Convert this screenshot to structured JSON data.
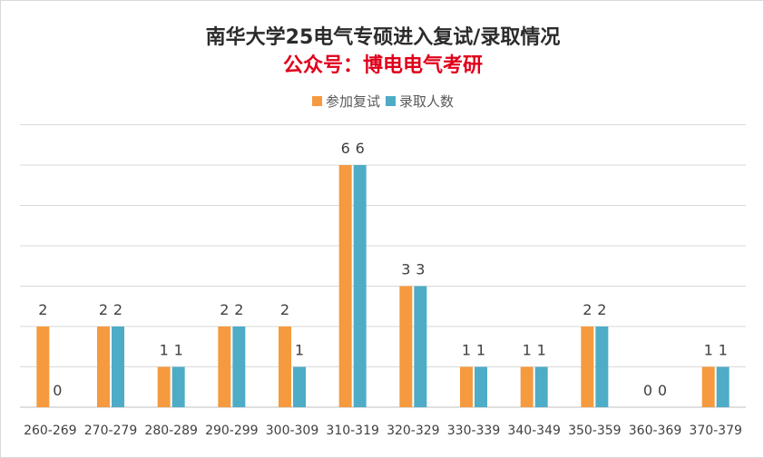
{
  "chart_data": {
    "type": "bar",
    "title": "南华大学25电气专硕进入复试/录取情况",
    "subtitle": "公众号：博电电气考研",
    "categories": [
      "260-269",
      "270-279",
      "280-289",
      "290-299",
      "300-309",
      "310-319",
      "320-329",
      "330-339",
      "340-349",
      "350-359",
      "360-369",
      "370-379"
    ],
    "series": [
      {
        "name": "参加复试",
        "color": "#f59a3f",
        "values": [
          2,
          2,
          1,
          2,
          2,
          6,
          3,
          1,
          1,
          2,
          0,
          1
        ]
      },
      {
        "name": "录取人数",
        "color": "#4eacc6",
        "values": [
          0,
          2,
          1,
          2,
          1,
          6,
          3,
          1,
          1,
          2,
          0,
          1
        ]
      }
    ],
    "ylim": [
      0,
      7
    ],
    "grid": true,
    "legend_position": "top-center",
    "xlabel": "",
    "ylabel": ""
  }
}
